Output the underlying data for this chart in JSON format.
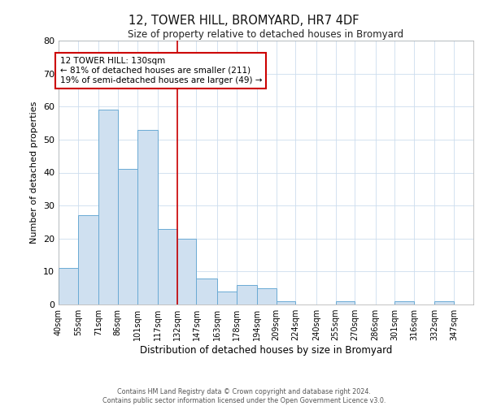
{
  "title": "12, TOWER HILL, BROMYARD, HR7 4DF",
  "subtitle": "Size of property relative to detached houses in Bromyard",
  "xlabel": "Distribution of detached houses by size in Bromyard",
  "ylabel": "Number of detached properties",
  "bin_labels": [
    "40sqm",
    "55sqm",
    "71sqm",
    "86sqm",
    "101sqm",
    "117sqm",
    "132sqm",
    "147sqm",
    "163sqm",
    "178sqm",
    "194sqm",
    "209sqm",
    "224sqm",
    "240sqm",
    "255sqm",
    "270sqm",
    "286sqm",
    "301sqm",
    "316sqm",
    "332sqm",
    "347sqm"
  ],
  "bar_heights": [
    11,
    27,
    59,
    41,
    53,
    23,
    20,
    8,
    4,
    6,
    5,
    1,
    0,
    0,
    1,
    0,
    0,
    1,
    0,
    1,
    0
  ],
  "bar_color": "#cfe0f0",
  "bar_edge_color": "#6aaad4",
  "bin_edges": [
    40,
    55,
    71,
    86,
    101,
    117,
    132,
    147,
    163,
    178,
    194,
    209,
    224,
    240,
    255,
    270,
    286,
    301,
    316,
    332,
    347,
    362
  ],
  "vline_x": 132,
  "vline_color": "#cc0000",
  "ylim": [
    0,
    80
  ],
  "yticks": [
    0,
    10,
    20,
    30,
    40,
    50,
    60,
    70,
    80
  ],
  "annotation_title": "12 TOWER HILL: 130sqm",
  "annotation_line1": "← 81% of detached houses are smaller (211)",
  "annotation_line2": "19% of semi-detached houses are larger (49) →",
  "annotation_box_color": "#ffffff",
  "annotation_box_edge": "#cc0000",
  "footer_line1": "Contains HM Land Registry data © Crown copyright and database right 2024.",
  "footer_line2": "Contains public sector information licensed under the Open Government Licence v3.0.",
  "bg_color": "#ffffff",
  "plot_bg_color": "#ffffff",
  "grid_color": "#ccddee"
}
